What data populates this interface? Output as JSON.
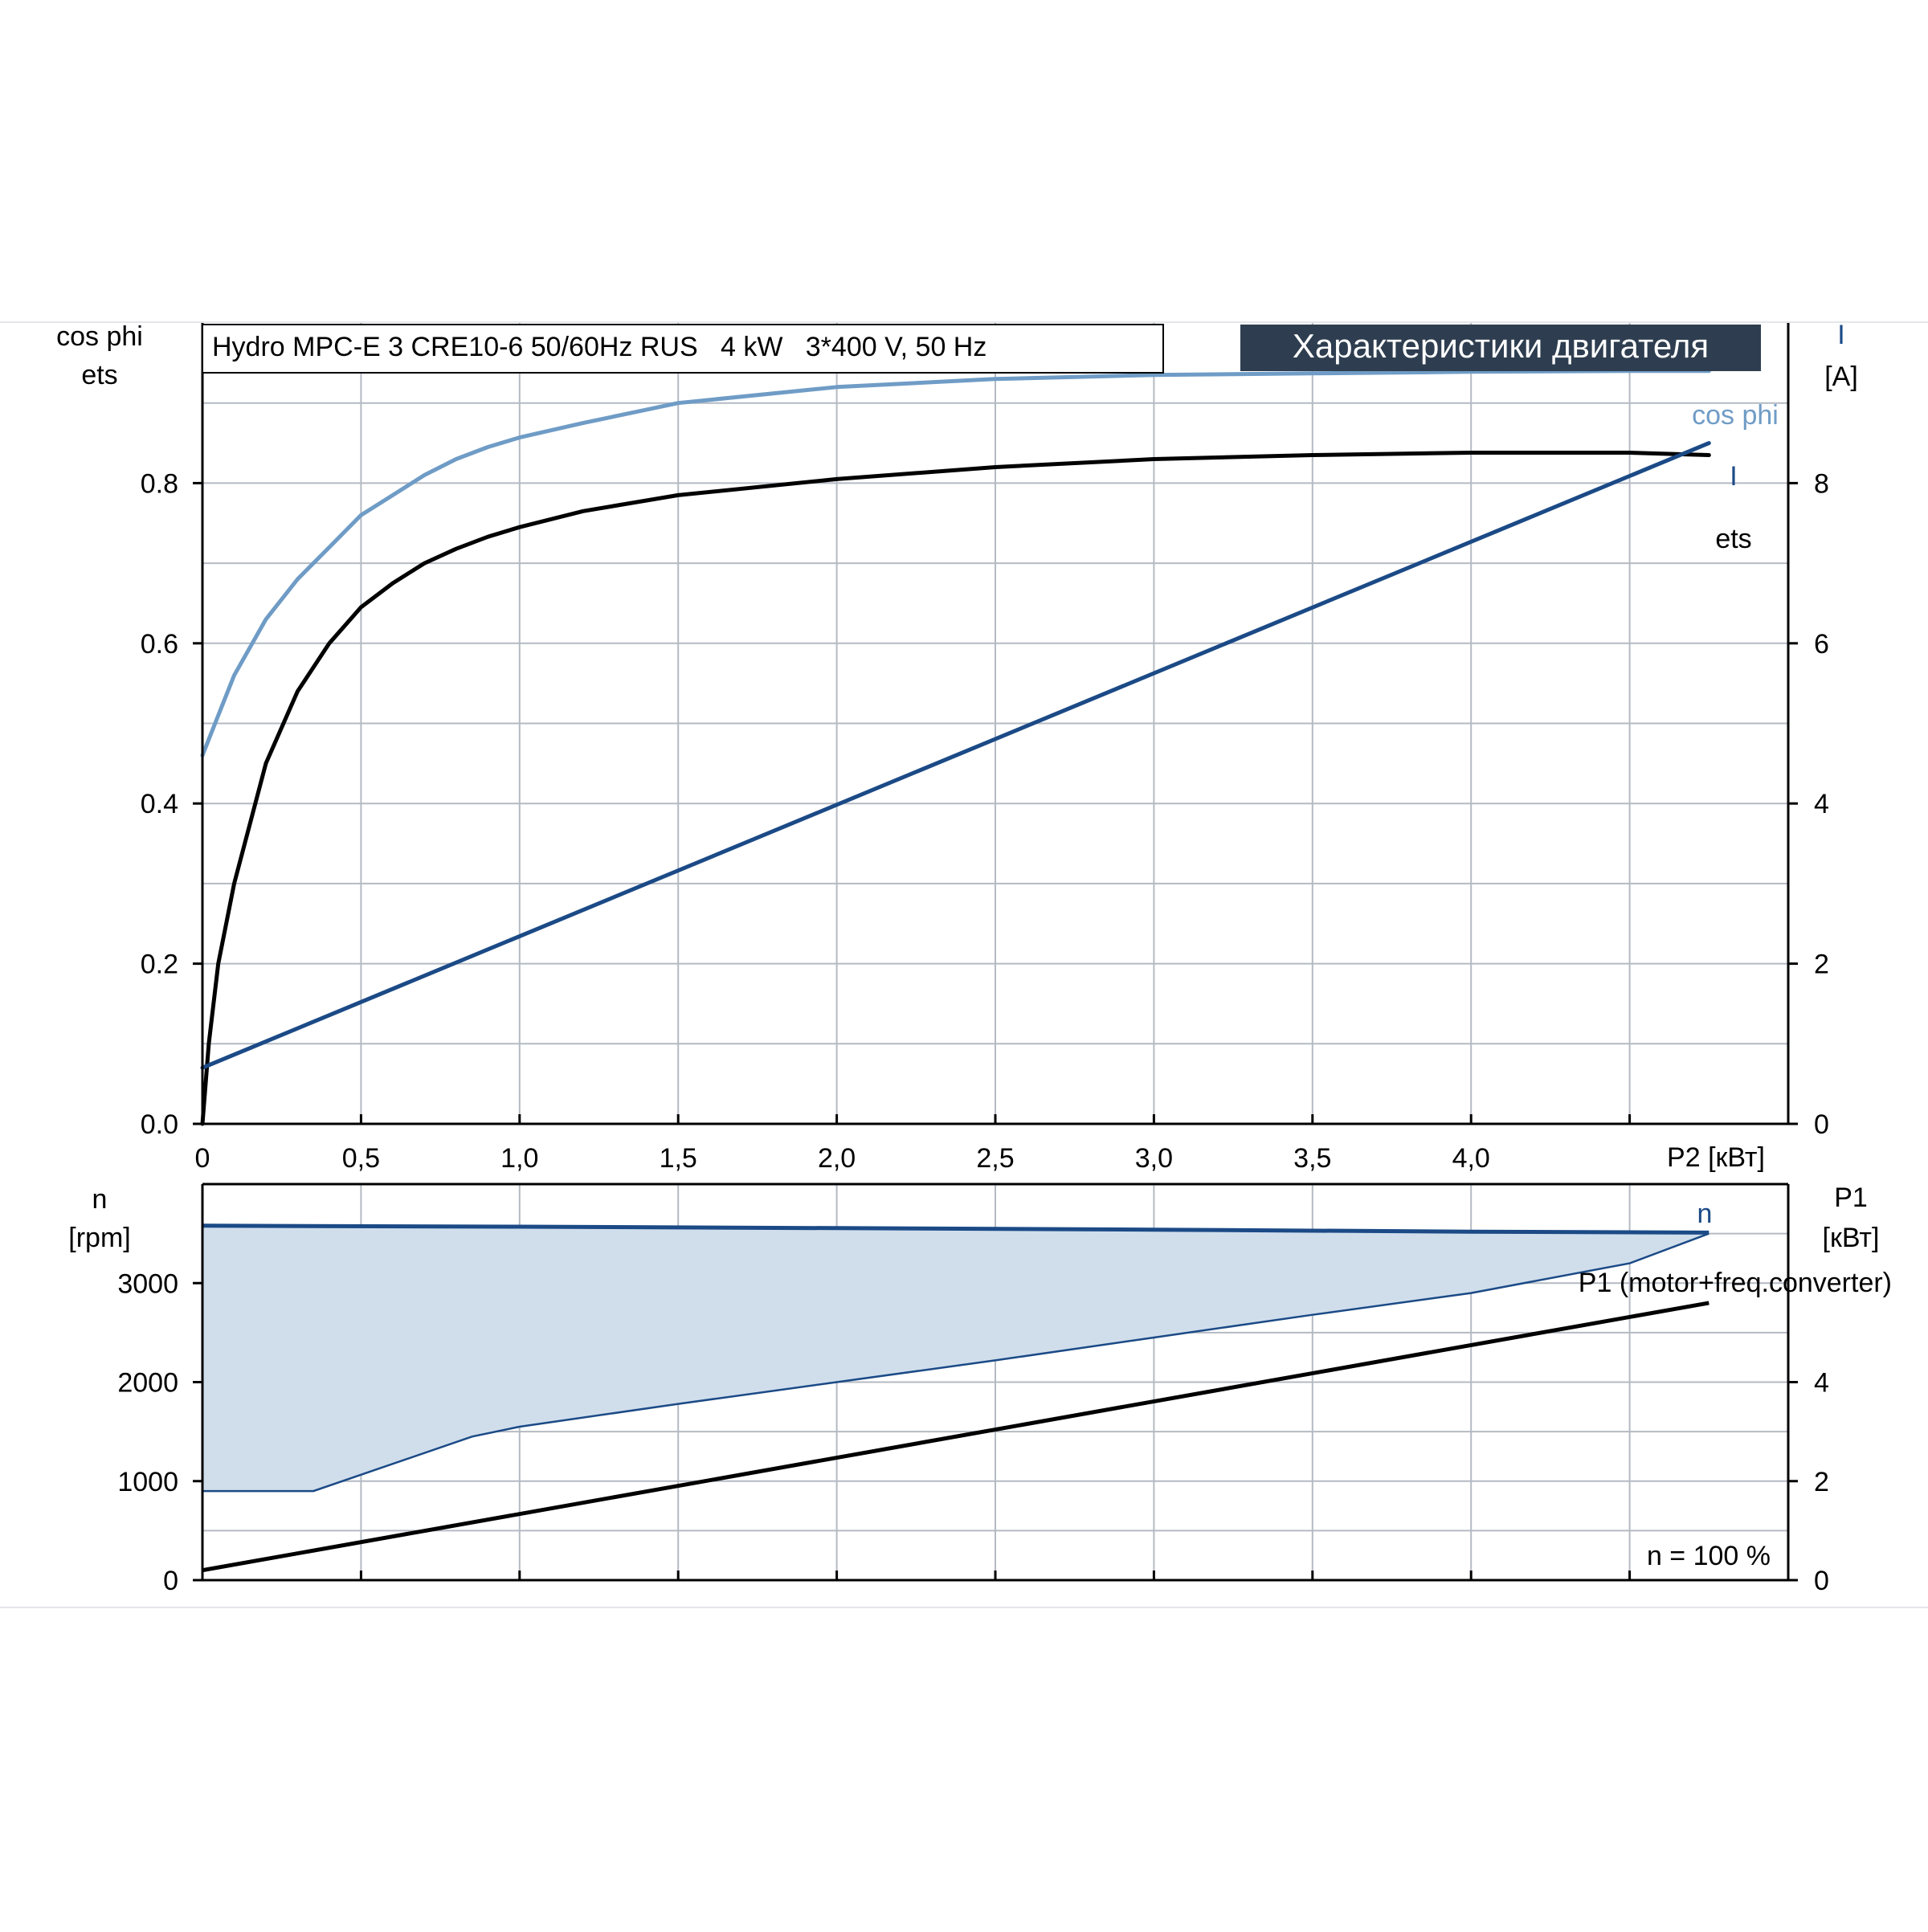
{
  "title_box": "Hydro MPC-E 3 CRE10-6 50/60Hz RUS   4 kW   3*400 V, 50 Hz",
  "section_title": "Характеристики двигателя",
  "colors": {
    "cos_phi": "#6f9cc6",
    "current": "#1b4a86",
    "efficiency": "#000000",
    "speed": "#1b4a86",
    "power": "#000000",
    "speed_band_fill": "#d0deec",
    "title_bg": "#2e3e50",
    "grid": "#b4bac3",
    "axis": "#000000"
  },
  "chart_data": [
    {
      "type": "line",
      "name": "upper",
      "x_label": "P2 [кВт]",
      "x_ticks": [
        "0",
        "0,5",
        "1,0",
        "1,5",
        "2,0",
        "2,5",
        "3,0",
        "3,5",
        "4,0"
      ],
      "x_tick_values": [
        0,
        0.5,
        1.0,
        1.5,
        2.0,
        2.5,
        3.0,
        3.5,
        4.0
      ],
      "xlim": [
        0,
        5.0
      ],
      "left_axis": {
        "labels": [
          "cos phi",
          "ets"
        ],
        "ticks": [
          "0.0",
          "0.2",
          "0.4",
          "0.6",
          "0.8"
        ],
        "tick_values": [
          0,
          0.2,
          0.4,
          0.6,
          0.8
        ],
        "ylim": [
          0,
          1.0
        ]
      },
      "right_axis": {
        "labels": [
          "I",
          "[A]"
        ],
        "ticks": [
          "0",
          "2",
          "4",
          "6",
          "8"
        ],
        "tick_values": [
          0,
          2,
          4,
          6,
          8
        ],
        "ylim": [
          0,
          10
        ]
      },
      "grid": true,
      "series": [
        {
          "name": "cos phi",
          "axis": "left",
          "x": [
            0,
            0.05,
            0.1,
            0.2,
            0.3,
            0.4,
            0.5,
            0.6,
            0.7,
            0.8,
            0.9,
            1.0,
            1.2,
            1.5,
            2.0,
            2.5,
            3.0,
            3.5,
            4.0,
            4.5,
            4.75
          ],
          "y": [
            0.46,
            0.51,
            0.56,
            0.63,
            0.68,
            0.72,
            0.76,
            0.785,
            0.81,
            0.83,
            0.845,
            0.857,
            0.875,
            0.9,
            0.92,
            0.93,
            0.935,
            0.937,
            0.939,
            0.94,
            0.94
          ]
        },
        {
          "name": "ets",
          "axis": "left",
          "x": [
            0,
            0.02,
            0.05,
            0.1,
            0.2,
            0.3,
            0.4,
            0.5,
            0.6,
            0.7,
            0.8,
            0.9,
            1.0,
            1.2,
            1.5,
            2.0,
            2.5,
            3.0,
            3.5,
            4.0,
            4.5,
            4.75
          ],
          "y": [
            0,
            0.1,
            0.2,
            0.3,
            0.45,
            0.54,
            0.6,
            0.645,
            0.675,
            0.7,
            0.718,
            0.733,
            0.745,
            0.765,
            0.785,
            0.805,
            0.82,
            0.83,
            0.835,
            0.838,
            0.838,
            0.835
          ]
        },
        {
          "name": "I",
          "axis": "right",
          "x": [
            0,
            4.75
          ],
          "y": [
            0.7,
            8.5
          ]
        }
      ],
      "labels": [
        "cos phi",
        "I",
        "ets"
      ]
    },
    {
      "type": "line",
      "name": "lower",
      "xlim": [
        0,
        5.0
      ],
      "left_axis": {
        "labels": [
          "n",
          "[rpm]"
        ],
        "ticks": [
          "0",
          "1000",
          "2000",
          "3000"
        ],
        "tick_values": [
          0,
          1000,
          2000,
          3000
        ],
        "ylim": [
          0,
          4000
        ]
      },
      "right_axis": {
        "labels": [
          "P1",
          "[кВт]"
        ],
        "ticks": [
          "0",
          "2",
          "4"
        ],
        "tick_values": [
          0,
          2,
          4
        ],
        "ylim": [
          0,
          8
        ]
      },
      "grid": true,
      "series": [
        {
          "name": "n",
          "axis": "left",
          "x": [
            0,
            1.0,
            2.0,
            3.0,
            4.0,
            4.75
          ],
          "y": [
            3580,
            3570,
            3555,
            3540,
            3520,
            3510
          ]
        },
        {
          "name": "n min",
          "axis": "left",
          "x": [
            0,
            0.05,
            0.35,
            0.85,
            1.0,
            1.5,
            2.0,
            2.5,
            3.0,
            3.5,
            4.0,
            4.5,
            4.75
          ],
          "y": [
            900,
            900,
            900,
            1450,
            1550,
            1780,
            2000,
            2220,
            2450,
            2680,
            2900,
            3200,
            3500
          ]
        },
        {
          "name": "P1 (motor+freq.converter)",
          "axis": "right",
          "x": [
            0,
            4.75
          ],
          "y": [
            0.2,
            5.6
          ]
        }
      ],
      "labels": [
        "n",
        "P1 (motor+freq.converter)",
        "n = 100 %"
      ]
    }
  ]
}
